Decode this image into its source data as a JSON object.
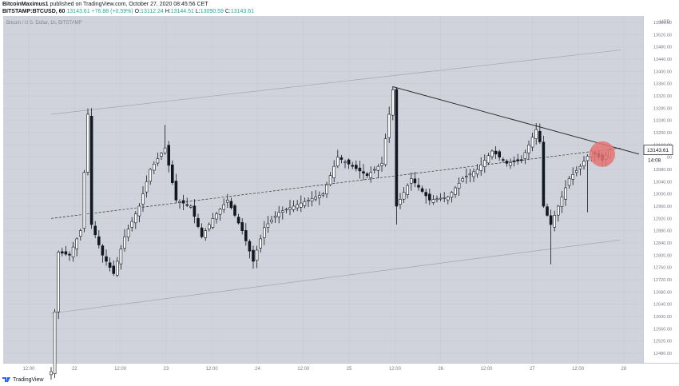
{
  "header": {
    "author": "BitcoinMaximus1",
    "published": "published on TradingView.com, October 27, 2020 08:45:56 CET",
    "symbol": "BITSTAMP:BTCUSD, 60",
    "last": "13143.61",
    "change": "+76.88 (+0.59%)",
    "o_label": "O:",
    "o": "13112.24",
    "h_label": "H:",
    "h": "13144.51",
    "l_label": "L:",
    "l": "13090.59",
    "c_label": "C:",
    "c": "13143.61"
  },
  "chart_title": "Bitcoin / U.S. Dollar, 1h, BITSTAMP",
  "currency": "USD",
  "price_label": "13143.61",
  "timer_label": "14:08",
  "footer": {
    "brand": "TradingView"
  },
  "colors": {
    "background": "#d0d3dc",
    "candle_dark": "#131722",
    "candle_light": "#ffffff",
    "highlight": "#e57373",
    "line": "#555555"
  },
  "chart_data": {
    "type": "candlestick",
    "y_ticks": [
      "12480.00",
      "12520.00",
      "12560.00",
      "12600.00",
      "12640.00",
      "12680.00",
      "12720.00",
      "12760.00",
      "12800.00",
      "12840.00",
      "12880.00",
      "12920.00",
      "12960.00",
      "13000.00",
      "13040.00",
      "13080.00",
      "13120.00",
      "13160.00",
      "13200.00",
      "13240.00",
      "13280.00",
      "13320.00",
      "13360.00",
      "13400.00",
      "13440.00",
      "13480.00",
      "13520.00",
      "13560.00"
    ],
    "x_ticks": [
      "12:00",
      "22",
      "12:00",
      "23",
      "12:00",
      "24",
      "12:00",
      "25",
      "12:00",
      "26",
      "12:00",
      "27",
      "12:00",
      "28"
    ],
    "ylim": [
      12470,
      13590
    ],
    "waypoints": [
      [
        0,
        12420
      ],
      [
        2,
        12810
      ],
      [
        5,
        12800
      ],
      [
        8,
        12880
      ],
      [
        10,
        13260
      ],
      [
        11,
        12900
      ],
      [
        14,
        12800
      ],
      [
        17,
        12740
      ],
      [
        20,
        12860
      ],
      [
        24,
        12960
      ],
      [
        27,
        13080
      ],
      [
        31,
        13150
      ],
      [
        34,
        12980
      ],
      [
        38,
        12960
      ],
      [
        41,
        12860
      ],
      [
        44,
        12920
      ],
      [
        48,
        12980
      ],
      [
        52,
        12880
      ],
      [
        55,
        12780
      ],
      [
        58,
        12890
      ],
      [
        62,
        12940
      ],
      [
        66,
        12960
      ],
      [
        70,
        12980
      ],
      [
        74,
        13000
      ],
      [
        78,
        13120
      ],
      [
        82,
        13090
      ],
      [
        86,
        13060
      ],
      [
        90,
        13100
      ],
      [
        93,
        13340
      ],
      [
        94,
        12960
      ],
      [
        98,
        13050
      ],
      [
        103,
        12980
      ],
      [
        108,
        12990
      ],
      [
        112,
        13050
      ],
      [
        116,
        13080
      ],
      [
        120,
        13140
      ],
      [
        124,
        13100
      ],
      [
        128,
        13110
      ],
      [
        132,
        13210
      ],
      [
        133,
        13170
      ],
      [
        134,
        12960
      ],
      [
        136,
        12900
      ],
      [
        138,
        12960
      ],
      [
        141,
        13050
      ],
      [
        144,
        13090
      ],
      [
        147,
        13140
      ],
      [
        149,
        13120
      ],
      [
        150,
        13110
      ],
      [
        152,
        13143.61
      ]
    ],
    "spikes": {
      "10": [
        null,
        13265
      ],
      "13": [
        12850,
        null
      ],
      "31": [
        null,
        13225
      ],
      "55": [
        12760,
        null
      ],
      "93": [
        null,
        13350
      ],
      "94": [
        12900,
        null
      ],
      "133": [
        null,
        13230
      ],
      "136": [
        12770,
        null
      ],
      "146": [
        12940,
        null
      ]
    },
    "upper_channel": [
      [
        0,
        13260
      ],
      [
        155,
        13470
      ]
    ],
    "lower_channel": [
      [
        0,
        12610
      ],
      [
        155,
        12850
      ]
    ],
    "mid_channel": [
      [
        0,
        12920
      ],
      [
        155,
        13150
      ]
    ],
    "resistance_line": [
      [
        93,
        13350
      ],
      [
        160,
        13130
      ]
    ],
    "highlight_point": [
      150,
      13130
    ]
  }
}
